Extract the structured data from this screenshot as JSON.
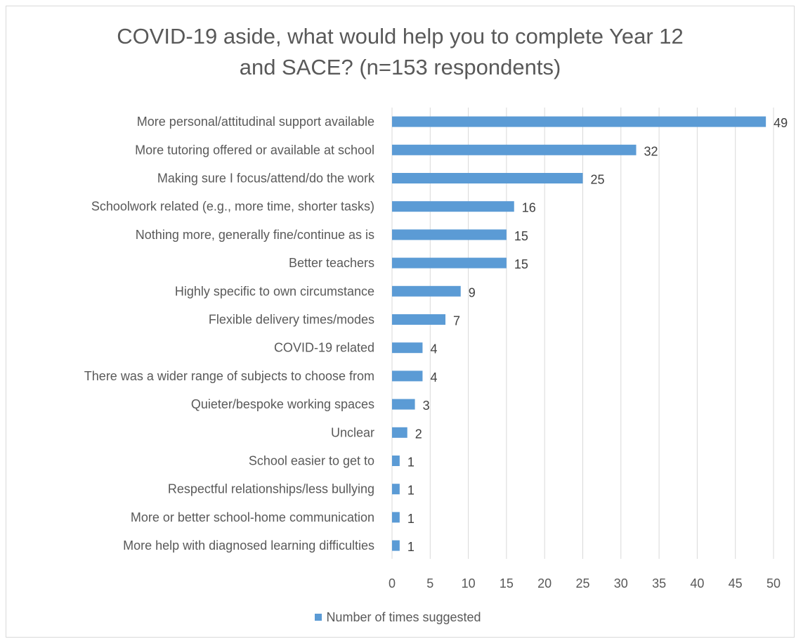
{
  "chart_data": {
    "type": "bar",
    "orientation": "horizontal",
    "title_lines": [
      "COVID-19 aside, what would help you to complete Year 12",
      "and SACE? (n=153 respondents)"
    ],
    "categories": [
      "More personal/attitudinal support available",
      "More tutoring offered or available at school",
      "Making sure I focus/attend/do the work",
      "Schoolwork related (e.g., more time, shorter tasks)",
      "Nothing more, generally fine/continue as is",
      "Better teachers",
      "Highly specific to own circumstance",
      "Flexible delivery times/modes",
      "COVID-19 related",
      "There was a wider range of subjects to choose from",
      "Quieter/bespoke working spaces",
      "Unclear",
      "School easier to get to",
      "Respectful relationships/less bullying",
      "More or better school-home communication",
      "More help with diagnosed learning difficulties"
    ],
    "series": [
      {
        "name": "Number of times suggested",
        "values": [
          49,
          32,
          25,
          16,
          15,
          15,
          9,
          7,
          4,
          4,
          3,
          2,
          1,
          1,
          1,
          1
        ]
      }
    ],
    "xlim": [
      0,
      50
    ],
    "x_ticks": [
      0,
      5,
      10,
      15,
      20,
      25,
      30,
      35,
      40,
      45,
      50
    ],
    "grid": "vertical",
    "legend_position": "bottom",
    "colors": {
      "bar": "#5b9bd5",
      "grid": "#d9d9d9",
      "text": "#595959",
      "value_text": "#404040"
    }
  }
}
